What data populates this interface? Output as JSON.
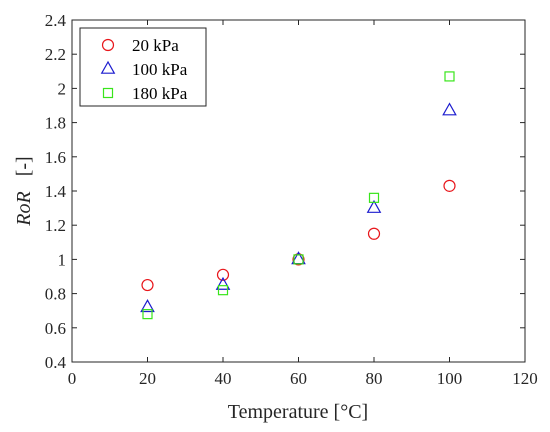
{
  "chart_data": {
    "type": "scatter",
    "xlabel": "Temperature [°C]",
    "ylabel": "RoR",
    "ylabel_unit": "[-]",
    "xlim": [
      0,
      120
    ],
    "ylim": [
      0.4,
      2.4
    ],
    "xticks": [
      "0",
      "20",
      "40",
      "60",
      "80",
      "100",
      "120"
    ],
    "yticks": [
      "0.4",
      "0.6",
      "0.8",
      "1",
      "1.2",
      "1.4",
      "1.6",
      "1.8",
      "2",
      "2.2",
      "2.4"
    ],
    "grid": false,
    "legend_position": "top-left",
    "series": [
      {
        "name": "20 kPa",
        "marker": "circle",
        "color": "#e8161b",
        "x": [
          20,
          40,
          60,
          80,
          100
        ],
        "y": [
          0.85,
          0.91,
          1.0,
          1.15,
          1.43
        ]
      },
      {
        "name": "100 kPa",
        "marker": "triangle",
        "color": "#1c1ccf",
        "x": [
          20,
          40,
          60,
          80,
          100
        ],
        "y": [
          0.72,
          0.85,
          1.0,
          1.3,
          1.87
        ]
      },
      {
        "name": "180 kPa",
        "marker": "square",
        "color": "#39e51b",
        "x": [
          20,
          40,
          60,
          80,
          100
        ],
        "y": [
          0.68,
          0.82,
          1.0,
          1.36,
          2.07
        ]
      }
    ]
  }
}
